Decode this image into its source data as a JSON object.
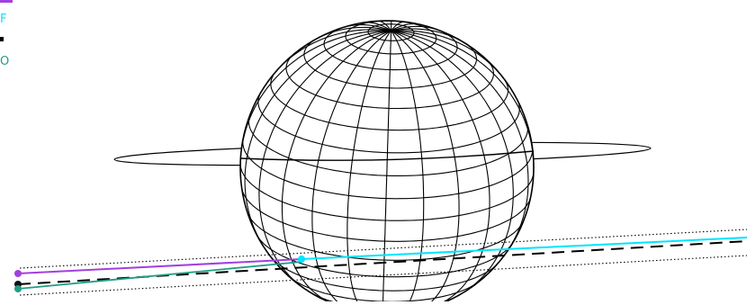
{
  "labels": [
    {
      "id": "purple",
      "text": "",
      "color": "#a23fe0"
    },
    {
      "id": "cyan",
      "text": "F",
      "color": "#00e5ff"
    },
    {
      "id": "black",
      "text": "",
      "color": "#000000"
    },
    {
      "id": "teal",
      "text": "O",
      "color": "#1f9e84"
    }
  ],
  "colors": {
    "stroke": "#000000",
    "purple": "#a23fe0",
    "cyan": "#00e5ff",
    "teal": "#1f9e84"
  }
}
